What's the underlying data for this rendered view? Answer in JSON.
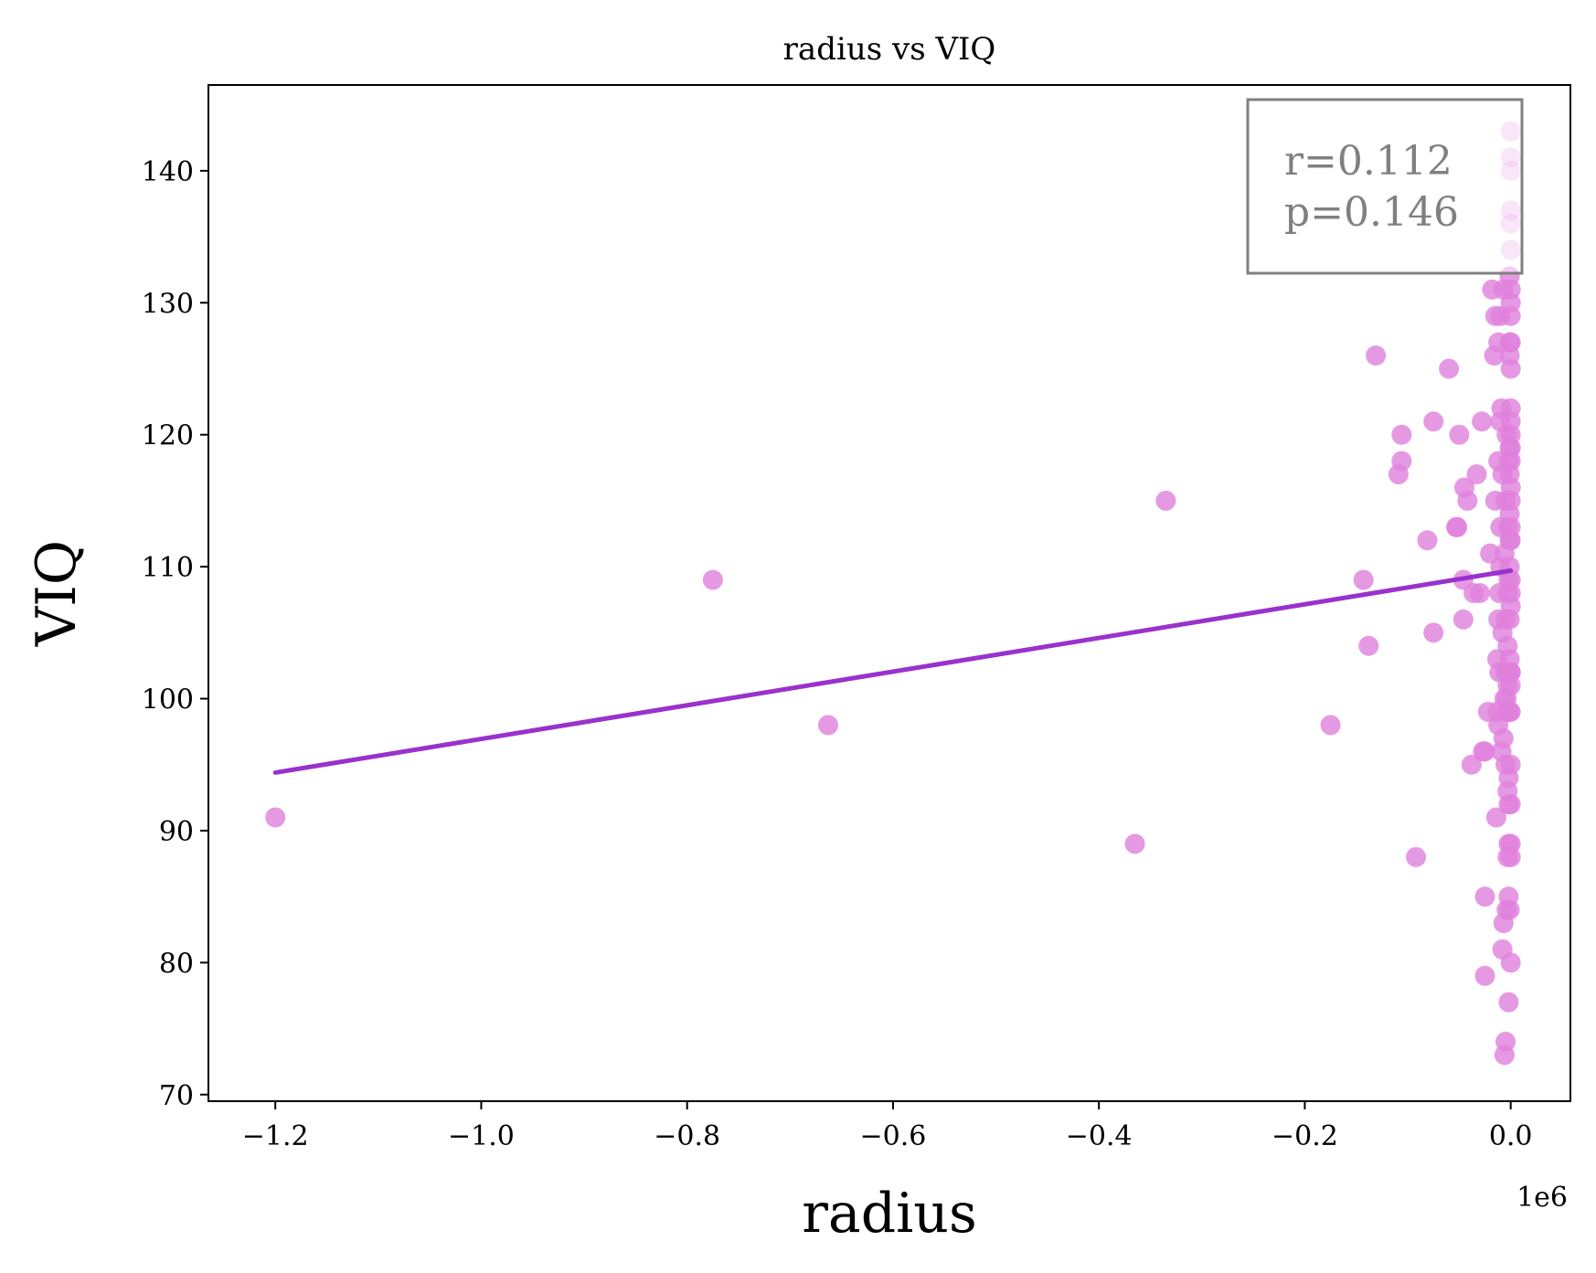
{
  "chart_data": {
    "type": "scatter",
    "title": "radius vs VIQ",
    "xlabel": "radius",
    "ylabel": "VIQ",
    "x_offset_label": "1e6",
    "x_scale": 1000000,
    "xlim": [
      -1.265,
      0.058
    ],
    "ylim": [
      69.5,
      146.5
    ],
    "xticks": [
      -1.2,
      -1.0,
      -0.8,
      -0.6,
      -0.4,
      -0.2,
      0.0
    ],
    "xtick_labels": [
      "−1.2",
      "−1.0",
      "−0.8",
      "−0.6",
      "−0.4",
      "−0.2",
      "0.0"
    ],
    "yticks": [
      70,
      80,
      90,
      100,
      110,
      120,
      130,
      140
    ],
    "ytick_labels": [
      "70",
      "80",
      "90",
      "100",
      "110",
      "120",
      "130",
      "140"
    ],
    "grid": false,
    "point_color": "#e07fdc",
    "line_color": "#9932cc",
    "stats": {
      "r_text": "r=0.112",
      "p_text": "p=0.146",
      "placement": "top-right"
    },
    "fit_line": {
      "x": [
        -1.2,
        0.0
      ],
      "y": [
        94.4,
        109.7
      ]
    },
    "points": [
      [
        -1.2,
        91
      ],
      [
        -0.775,
        109
      ],
      [
        -0.663,
        98
      ],
      [
        -0.365,
        89
      ],
      [
        -0.335,
        115
      ],
      [
        -0.175,
        98
      ],
      [
        -0.143,
        109
      ],
      [
        -0.138,
        104
      ],
      [
        -0.131,
        126
      ],
      [
        -0.106,
        120
      ],
      [
        -0.106,
        118
      ],
      [
        -0.109,
        117
      ],
      [
        -0.092,
        88
      ],
      [
        -0.081,
        112
      ],
      [
        -0.075,
        105
      ],
      [
        -0.075,
        121
      ],
      [
        -0.06,
        125
      ],
      [
        -0.052,
        113
      ],
      [
        -0.053,
        113
      ],
      [
        -0.05,
        120
      ],
      [
        -0.046,
        109
      ],
      [
        -0.046,
        106
      ],
      [
        -0.045,
        116
      ],
      [
        -0.042,
        115
      ],
      [
        -0.038,
        95
      ],
      [
        -0.036,
        108
      ],
      [
        -0.033,
        117
      ],
      [
        -0.03,
        108
      ],
      [
        -0.028,
        121
      ],
      [
        -0.027,
        96
      ],
      [
        -0.025,
        96
      ],
      [
        -0.025,
        79
      ],
      [
        -0.025,
        85
      ],
      [
        -0.022,
        99
      ],
      [
        -0.02,
        111
      ],
      [
        -0.018,
        131
      ],
      [
        -0.016,
        126
      ],
      [
        -0.015,
        129
      ],
      [
        -0.015,
        115
      ],
      [
        -0.014,
        91
      ],
      [
        -0.013,
        103
      ],
      [
        -0.013,
        99
      ],
      [
        -0.012,
        98
      ],
      [
        -0.012,
        106
      ],
      [
        -0.012,
        118
      ],
      [
        -0.012,
        127
      ],
      [
        -0.011,
        108
      ],
      [
        -0.011,
        102
      ],
      [
        -0.01,
        121
      ],
      [
        -0.01,
        113
      ],
      [
        -0.01,
        129
      ],
      [
        -0.01,
        110
      ],
      [
        -0.009,
        122
      ],
      [
        -0.009,
        96
      ],
      [
        -0.008,
        117
      ],
      [
        -0.008,
        105
      ],
      [
        -0.008,
        81
      ],
      [
        -0.007,
        83
      ],
      [
        -0.007,
        97
      ],
      [
        -0.007,
        131
      ],
      [
        -0.006,
        100
      ],
      [
        -0.006,
        111
      ],
      [
        -0.006,
        73
      ],
      [
        -0.005,
        74
      ],
      [
        -0.005,
        95
      ],
      [
        -0.005,
        106
      ],
      [
        -0.005,
        115
      ],
      [
        -0.005,
        102
      ],
      [
        -0.004,
        99
      ],
      [
        -0.004,
        120
      ],
      [
        -0.004,
        84
      ],
      [
        -0.004,
        100
      ],
      [
        -0.003,
        108
      ],
      [
        -0.003,
        113
      ],
      [
        -0.003,
        88
      ],
      [
        -0.003,
        93
      ],
      [
        -0.003,
        101
      ],
      [
        -0.003,
        104
      ],
      [
        -0.002,
        118
      ],
      [
        -0.002,
        94
      ],
      [
        -0.002,
        92
      ],
      [
        -0.002,
        85
      ],
      [
        -0.002,
        77
      ],
      [
        -0.002,
        109
      ],
      [
        -0.002,
        89
      ],
      [
        -0.002,
        102
      ],
      [
        -0.001,
        103
      ],
      [
        -0.001,
        117
      ],
      [
        -0.001,
        110
      ],
      [
        -0.001,
        106
      ],
      [
        -0.001,
        112
      ],
      [
        -0.001,
        119
      ],
      [
        -0.001,
        99
      ],
      [
        -0.001,
        84
      ],
      [
        -0.001,
        132
      ],
      [
        -0.001,
        127
      ],
      [
        -0.001,
        126
      ],
      [
        -0.001,
        114
      ],
      [
        0.0,
        107
      ],
      [
        0.0,
        89
      ],
      [
        0.0,
        122
      ],
      [
        0.0,
        115
      ],
      [
        0.0,
        102
      ],
      [
        0.0,
        120
      ],
      [
        0.0,
        88
      ],
      [
        0.0,
        80
      ],
      [
        0.0,
        119
      ],
      [
        0.0,
        130
      ],
      [
        0.0,
        116
      ],
      [
        0.0,
        112
      ],
      [
        0.0,
        134
      ],
      [
        0.0,
        136
      ],
      [
        0.0,
        140
      ],
      [
        0.0,
        143
      ],
      [
        0.0,
        141
      ],
      [
        0.0,
        137
      ],
      [
        0.0,
        131
      ],
      [
        0.0,
        125
      ],
      [
        0.0,
        121
      ],
      [
        0.0,
        108
      ],
      [
        0.0,
        99
      ],
      [
        0.0,
        95
      ],
      [
        0.0,
        92
      ],
      [
        0.0,
        101
      ],
      [
        0.0,
        129
      ],
      [
        0.0,
        127
      ],
      [
        0.0,
        118
      ],
      [
        0.0,
        113
      ],
      [
        0.0,
        109
      ],
      [
        0.0,
        102
      ]
    ]
  }
}
